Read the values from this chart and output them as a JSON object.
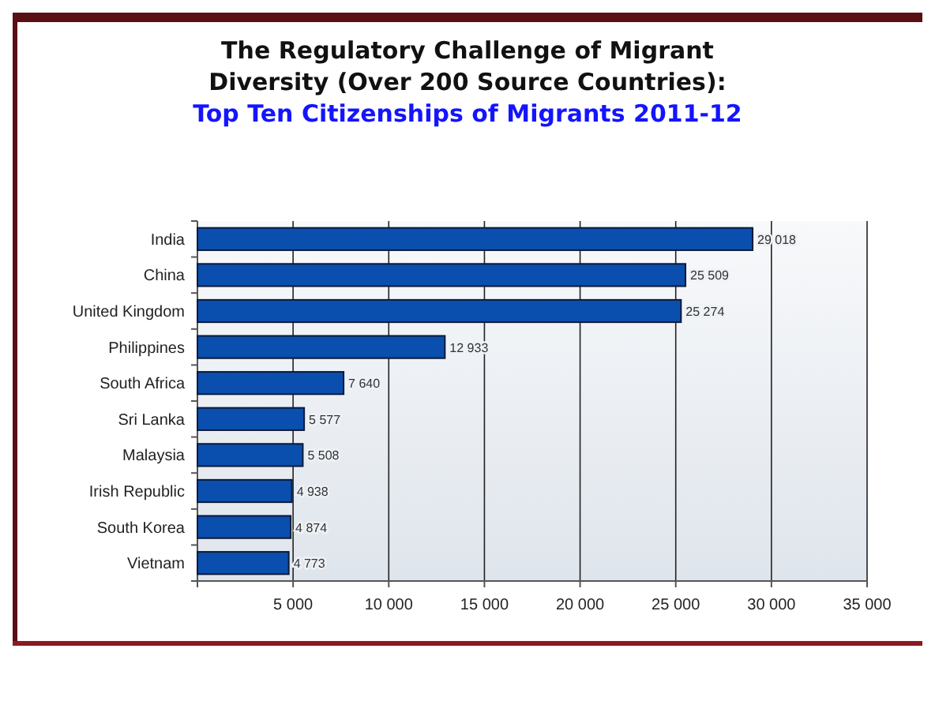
{
  "chart_data": {
    "type": "bar",
    "orientation": "horizontal",
    "title": "The Regulatory Challenge of Migrant Diversity (Over 200 Source Countries):",
    "subtitle": "Top Ten Citizenships of Migrants 2011-12",
    "categories": [
      "India",
      "China",
      "United Kingdom",
      "Philippines",
      "South Africa",
      "Sri Lanka",
      "Malaysia",
      "Irish Republic",
      "South Korea",
      "Vietnam"
    ],
    "values": [
      29018,
      25509,
      25274,
      12933,
      7640,
      5577,
      5508,
      4938,
      4874,
      4773
    ],
    "color": "#0a4fae",
    "data_labels": true,
    "grid": "x",
    "xlim": [
      0,
      35000
    ],
    "xticks": [
      {
        "value": 0,
        "label": null
      },
      {
        "value": 5000,
        "label": "5 000"
      },
      {
        "value": 10000,
        "label": "10 000"
      },
      {
        "value": 15000,
        "label": "15 000"
      },
      {
        "value": 20000,
        "label": "20 000"
      },
      {
        "value": 25000,
        "label": "25 000"
      },
      {
        "value": 30000,
        "label": "30 000"
      },
      {
        "value": 35000,
        "label": "35 000"
      }
    ]
  }
}
